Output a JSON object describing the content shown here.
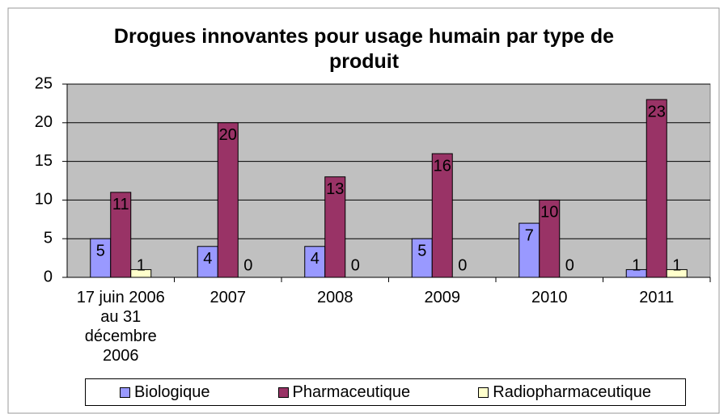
{
  "chart_data": {
    "type": "bar",
    "title": "Drogues innovantes pour usage humain par type de produit",
    "categories": [
      "17 juin 2006 au 31 décembre 2006",
      "2007",
      "2008",
      "2009",
      "2010",
      "2011"
    ],
    "series": [
      {
        "name": "Biologique",
        "color": "#9999ff",
        "values": [
          5,
          4,
          4,
          5,
          7,
          1
        ]
      },
      {
        "name": "Pharmaceutique",
        "color": "#993366",
        "values": [
          11,
          20,
          13,
          16,
          10,
          23
        ]
      },
      {
        "name": "Radiopharmaceutique",
        "color": "#ffffcc",
        "values": [
          1,
          0,
          0,
          0,
          0,
          1
        ]
      }
    ],
    "ylim": [
      0,
      25
    ],
    "yticks": [
      0,
      5,
      10,
      15,
      20,
      25
    ],
    "grid": true,
    "legend": "bottom"
  }
}
